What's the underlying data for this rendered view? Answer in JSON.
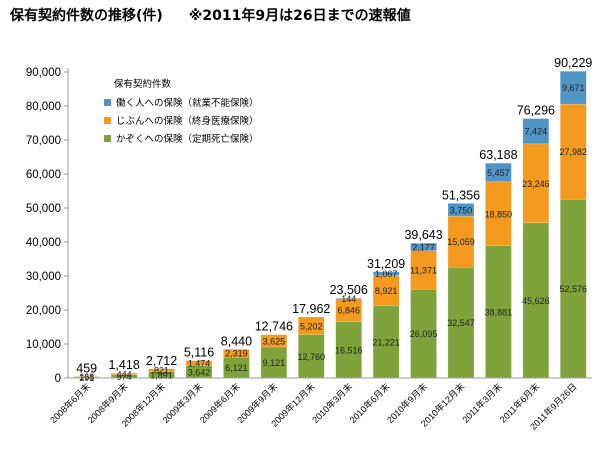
{
  "header": {
    "title": "保有契約件数の推移(件)",
    "note": "※2011年9月は26日までの速報値"
  },
  "chart_data": {
    "type": "bar",
    "stacked": true,
    "title": "保有契約件数の推移(件)",
    "subtitle": "※2011年9月は26日までの速報値",
    "legend_title": "保有契約件数",
    "legend_position": "top-left",
    "categories": [
      "2008年6月末",
      "2008年9月末",
      "2008年12月末",
      "2009年3月末",
      "2009年6月末",
      "2009年9月末",
      "2009年12月末",
      "2010年3月末",
      "2010年6月末",
      "2010年9月末",
      "2010年12月末",
      "2011年3月末",
      "2011年6月末",
      "2011年9月26日"
    ],
    "ylim": [
      0,
      90000
    ],
    "yticks": [
      "0",
      "10,000",
      "20,000",
      "30,000",
      "40,000",
      "50,000",
      "60,000",
      "70,000",
      "80,000",
      "90,000"
    ],
    "grid": false,
    "series": [
      {
        "name": "かぞくへの保険（定期死亡保険）",
        "color": "#7fa33a",
        "values": [
          291,
          974,
          1891,
          3642,
          6121,
          9121,
          12760,
          16516,
          21221,
          26095,
          32547,
          38881,
          45626,
          52576
        ],
        "labels": [
          "291",
          "974",
          "1,891",
          "3,642",
          "6,121",
          "9,121",
          "12,760",
          "16,516",
          "21,221",
          "26,095",
          "32,547",
          "38,881",
          "45,626",
          "52,576"
        ]
      },
      {
        "name": "じぶんへの保険（終身医療保険）",
        "color": "#f39a1f",
        "values": [
          168,
          444,
          821,
          1474,
          2319,
          3625,
          5202,
          6846,
          8921,
          11371,
          15059,
          18850,
          23246,
          27982
        ],
        "labels": [
          "168",
          "444",
          "821",
          "1,474",
          "2,319",
          "3,625",
          "5,202",
          "6,846",
          "8,921",
          "11,371",
          "15,059",
          "18,850",
          "23,246",
          "27,982"
        ]
      },
      {
        "name": "働く人への保険（就業不能保険）",
        "color": "#4f95c8",
        "values": [
          0,
          0,
          0,
          0,
          0,
          0,
          0,
          144,
          1067,
          2177,
          3750,
          5457,
          7424,
          9671
        ],
        "labels": [
          "",
          "",
          "",
          "",
          "",
          "",
          "",
          "144",
          "1,067",
          "2,177",
          "3,750",
          "5,457",
          "7,424",
          "9,671"
        ]
      }
    ],
    "totals": [
      459,
      1418,
      2712,
      5116,
      8440,
      12746,
      17962,
      23506,
      31209,
      39643,
      51356,
      63188,
      76296,
      90229
    ],
    "total_labels": [
      "459",
      "1,418",
      "2,712",
      "5,116",
      "8,440",
      "12,746",
      "17,962",
      "23,506",
      "31,209",
      "39,643",
      "51,356",
      "63,188",
      "76,296",
      "90,229"
    ]
  }
}
